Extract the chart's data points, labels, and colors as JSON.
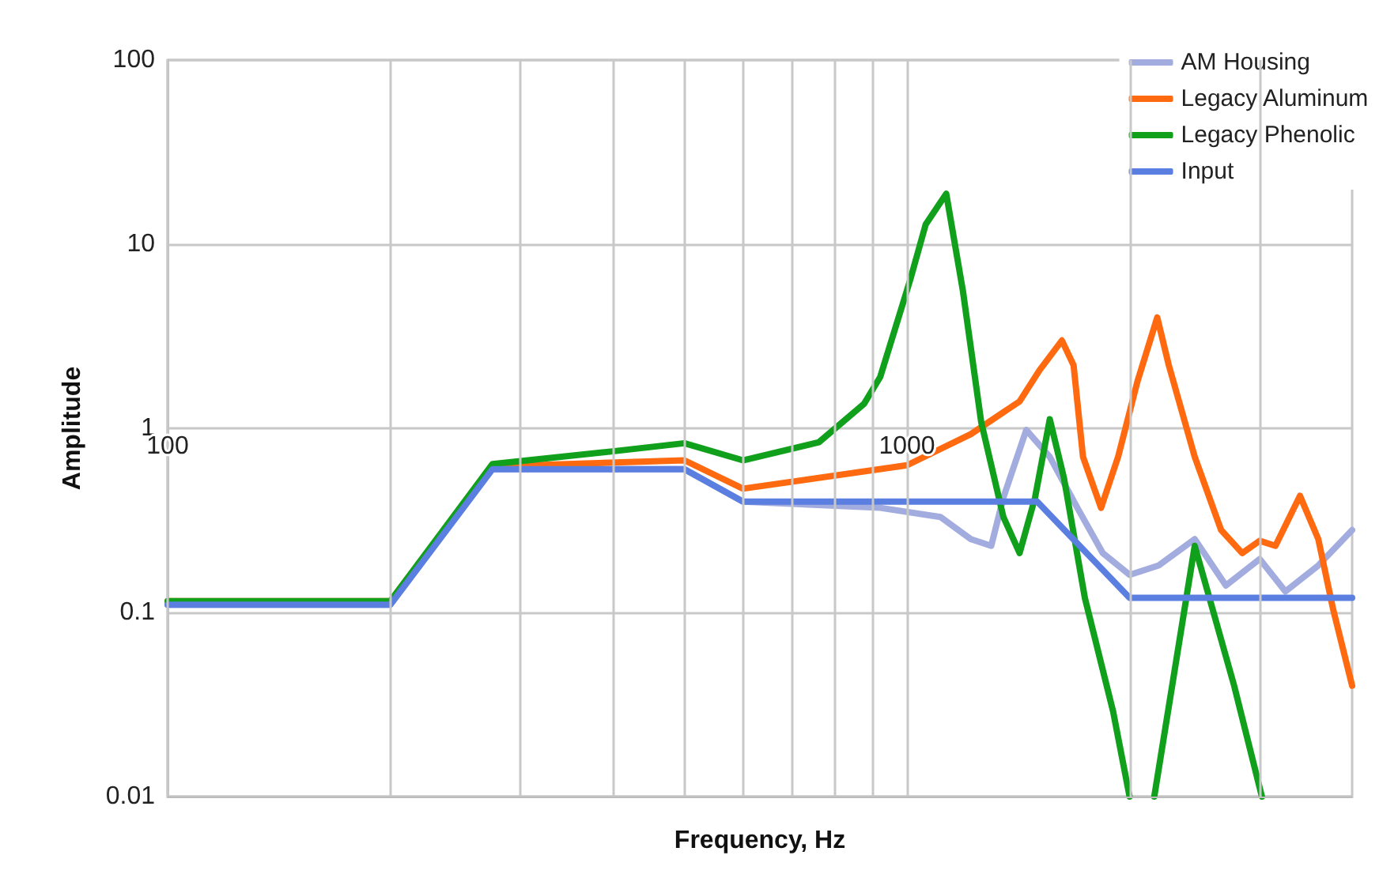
{
  "chart_data": {
    "type": "line",
    "xlabel": "Frequency, Hz",
    "ylabel": "Amplitude",
    "log": "xy",
    "grid": true,
    "legend": "top right",
    "marker": "none",
    "line_style": "solid",
    "xlim": [
      100,
      4000
    ],
    "ylim": [
      0.01,
      100
    ],
    "xticks": [
      100,
      {
        "value": 200,
        "label": null
      },
      {
        "value": 300,
        "label": null
      },
      {
        "value": 400,
        "label": null
      },
      {
        "value": 500,
        "label": null
      },
      {
        "value": 600,
        "label": null
      },
      {
        "value": 700,
        "label": null
      },
      {
        "value": 800,
        "label": null
      },
      {
        "value": 900,
        "label": null
      },
      1000,
      {
        "value": 2000,
        "label": null
      },
      {
        "value": 3000,
        "label": null
      }
    ],
    "yticks": [
      0.01,
      0.1,
      1,
      10,
      100
    ],
    "series": [
      {
        "name": "AM Housing",
        "color": "#a3acdf",
        "x": [
          100,
          200,
          275,
          500,
          600,
          920,
          1110,
          1220,
          1300,
          1350,
          1450,
          1560,
          1700,
          1840,
          2000,
          2190,
          2450,
          2700,
          3000,
          3250,
          3600,
          4000
        ],
        "values": [
          0.11,
          0.11,
          0.6,
          0.6,
          0.4,
          0.37,
          0.33,
          0.25,
          0.23,
          0.42,
          0.98,
          0.7,
          0.37,
          0.21,
          0.16,
          0.18,
          0.25,
          0.14,
          0.195,
          0.13,
          0.18,
          0.28
        ]
      },
      {
        "name": "Legacy Aluminum",
        "color": "#ff6a10",
        "x": [
          100,
          200,
          275,
          500,
          600,
          1000,
          1220,
          1420,
          1510,
          1620,
          1680,
          1730,
          1830,
          1930,
          2050,
          2180,
          2260,
          2450,
          2660,
          2840,
          3000,
          3150,
          3400,
          3600,
          3770,
          4000
        ],
        "values": [
          0.115,
          0.115,
          0.62,
          0.67,
          0.47,
          0.63,
          0.93,
          1.4,
          2.06,
          3.0,
          2.2,
          0.7,
          0.37,
          0.7,
          1.8,
          4.0,
          2.2,
          0.7,
          0.28,
          0.21,
          0.245,
          0.23,
          0.43,
          0.25,
          0.104,
          0.04
        ]
      },
      {
        "name": "Legacy Phenolic",
        "color": "#11a01b",
        "x": [
          100,
          200,
          275,
          400,
          500,
          600,
          760,
          875,
          920,
          1010,
          1060,
          1130,
          1190,
          1260,
          1350,
          1420,
          1490,
          1560,
          1630,
          1740,
          1900,
          2000,
          2080,
          2160,
          2450,
          2770,
          3020
        ],
        "values": [
          0.115,
          0.115,
          0.64,
          0.75,
          0.83,
          0.67,
          0.84,
          1.36,
          1.9,
          6.4,
          12.8,
          18.8,
          5.6,
          1.08,
          0.33,
          0.21,
          0.42,
          1.12,
          0.54,
          0.12,
          0.029,
          0.01,
          null,
          0.01,
          0.23,
          0.04,
          0.01
        ]
      },
      {
        "name": "Input",
        "color": "#5b7fe0",
        "x": [
          100,
          200,
          275,
          500,
          600,
          1500,
          2000,
          4000
        ],
        "values": [
          0.11,
          0.11,
          0.6,
          0.6,
          0.4,
          0.4,
          0.12,
          0.12
        ]
      }
    ]
  }
}
